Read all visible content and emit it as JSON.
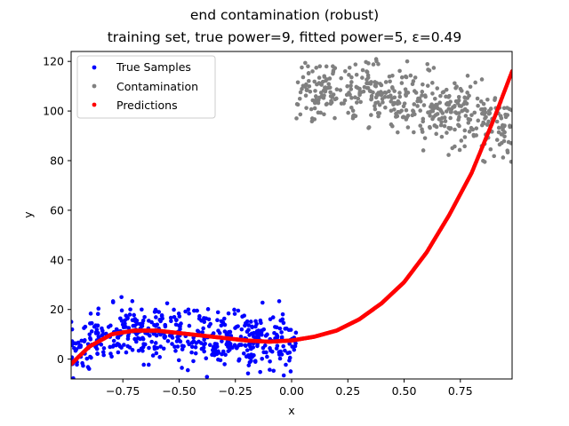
{
  "chart_data": {
    "type": "scatter",
    "title": "end contamination (robust)",
    "subtitle": "training set, true power=9, fitted power=5, ε=0.49",
    "xlabel": "x",
    "ylabel": "y",
    "xlim": [
      -0.98,
      0.98
    ],
    "ylim": [
      -8,
      124
    ],
    "xticks": [
      -0.75,
      -0.5,
      -0.25,
      0.0,
      0.25,
      0.5,
      0.75
    ],
    "xtick_labels": [
      "−0.75",
      "−0.50",
      "−0.25",
      "0.00",
      "0.25",
      "0.50",
      "0.75"
    ],
    "yticks": [
      0,
      20,
      40,
      60,
      80,
      100,
      120
    ],
    "ytick_labels": [
      "0",
      "20",
      "40",
      "60",
      "80",
      "100",
      "120"
    ],
    "grid": false,
    "legend_position": "top-left",
    "series": [
      {
        "name": "True Samples",
        "color": "#0000ff",
        "x_range": [
          -0.98,
          0.02
        ],
        "approx_mean_curve": {
          "x": [
            -0.98,
            -0.9,
            -0.8,
            -0.7,
            -0.6,
            -0.5,
            -0.4,
            -0.3,
            -0.2,
            -0.1,
            0.0
          ],
          "y": [
            0,
            6,
            10,
            11,
            11,
            10,
            9,
            8,
            7.5,
            7.5,
            7.5
          ]
        },
        "noise_sd": 5.5,
        "count": 500
      },
      {
        "name": "Contamination",
        "color": "#808080",
        "x_range": [
          0.02,
          0.98
        ],
        "approx_mean_curve": {
          "x": [
            0.0,
            0.25,
            0.5,
            0.75,
            0.98
          ],
          "y": [
            109,
            107,
            104,
            100,
            93
          ]
        },
        "noise_sd": 6.5,
        "count": 480
      },
      {
        "name": "Predictions",
        "color": "#ff0000",
        "x": [
          -0.98,
          -0.9,
          -0.8,
          -0.7,
          -0.6,
          -0.5,
          -0.4,
          -0.3,
          -0.2,
          -0.1,
          0.0,
          0.1,
          0.2,
          0.3,
          0.4,
          0.5,
          0.6,
          0.7,
          0.8,
          0.9,
          0.98
        ],
        "y": [
          -2,
          5,
          10,
          11.5,
          11.5,
          10.5,
          9.5,
          8.5,
          7.5,
          7,
          7.5,
          9,
          11.5,
          16,
          22.5,
          31,
          43,
          58,
          75,
          97,
          116
        ]
      }
    ]
  }
}
